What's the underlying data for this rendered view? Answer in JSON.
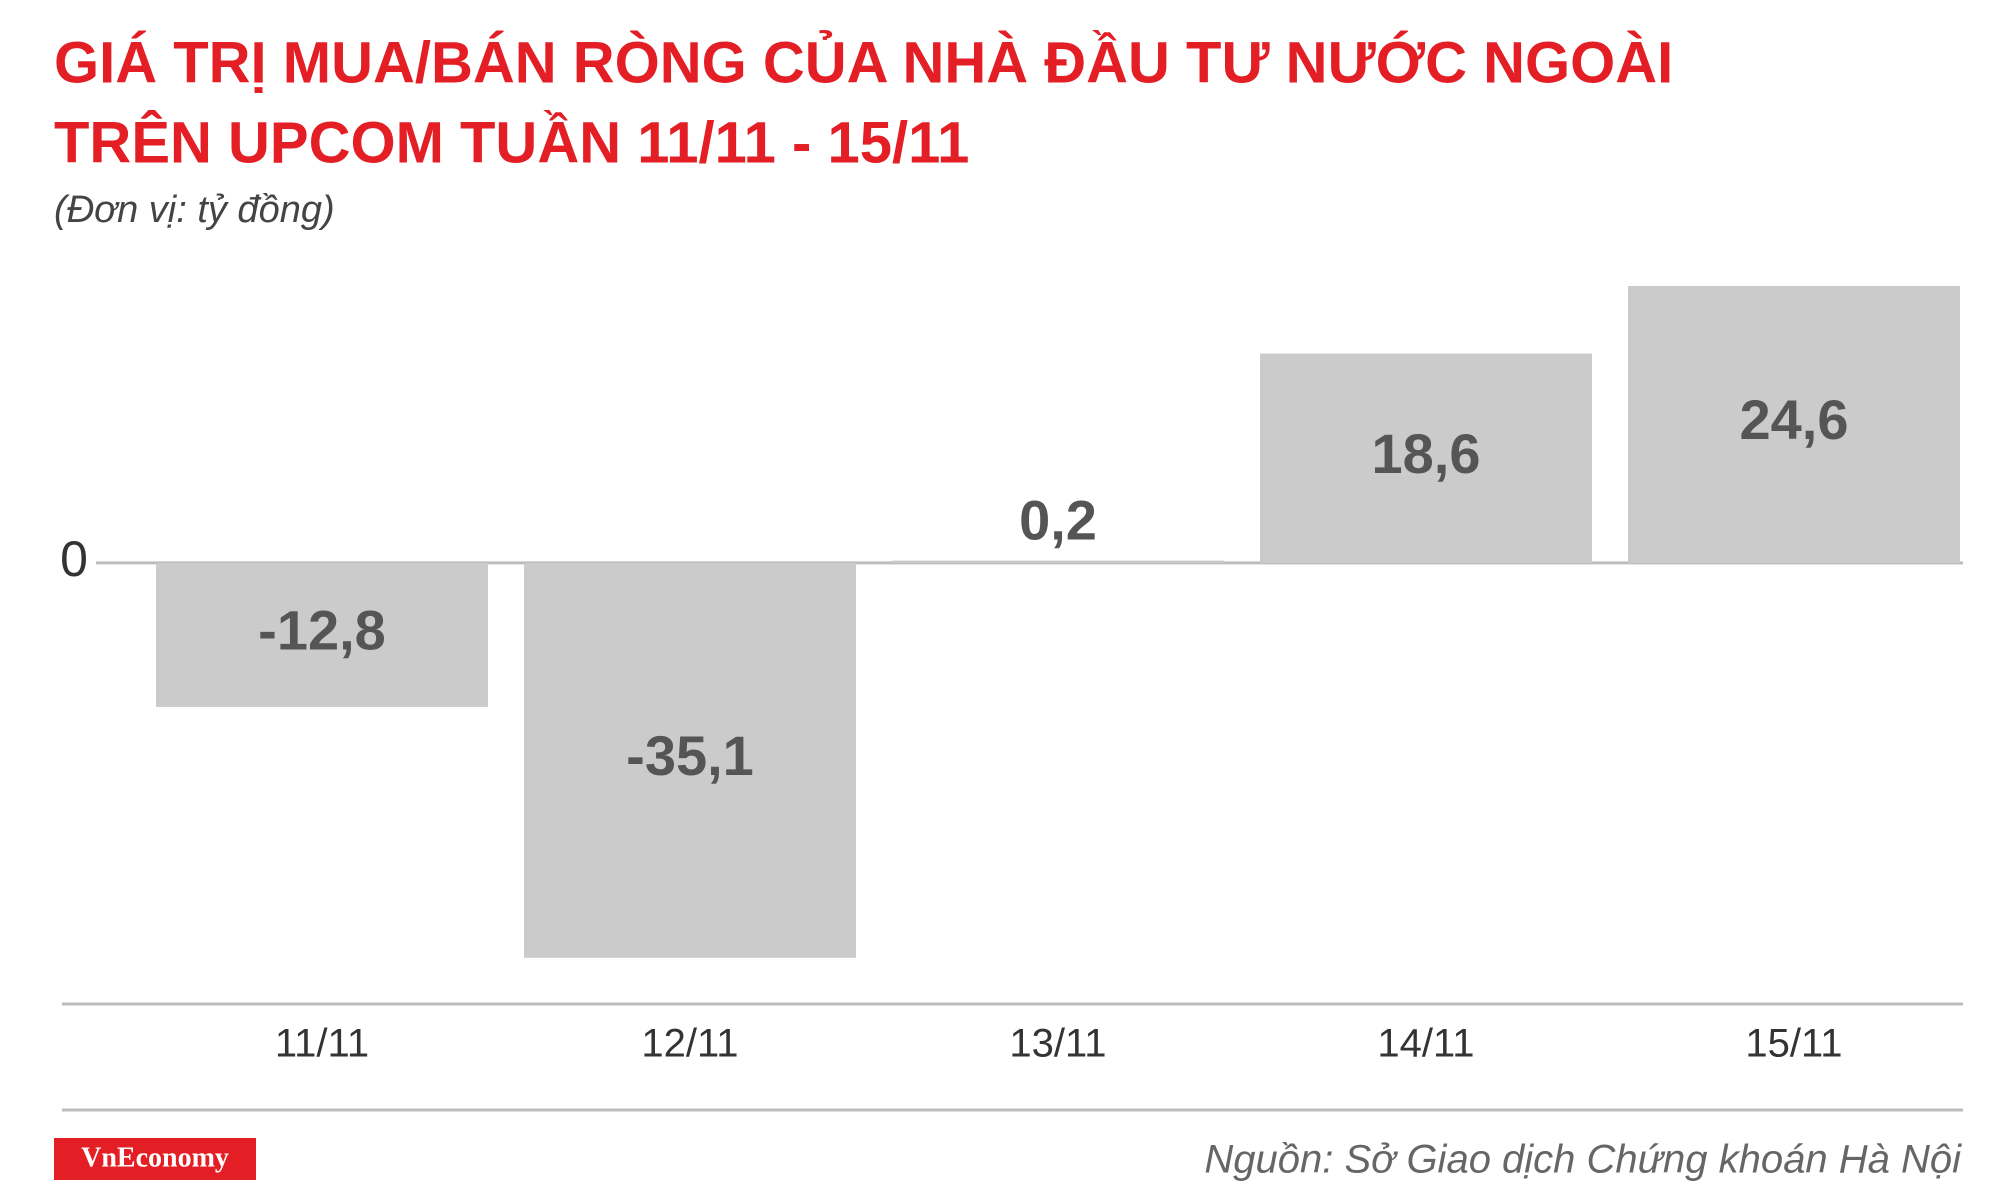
{
  "chart_data": {
    "type": "bar",
    "title": [
      "GIÁ TRỊ MUA/BÁN RÒNG CỦA NHÀ ĐẦU TƯ NƯỚC NGOÀI",
      "TRÊN UPCOM TUẦN 11/11 - 15/11"
    ],
    "subtitle": "(Đơn vị: tỷ đồng)",
    "categories": [
      "11/11",
      "12/11",
      "13/11",
      "14/11",
      "15/11"
    ],
    "values": [
      -12.8,
      -35.1,
      0.2,
      18.6,
      24.6
    ],
    "value_labels": [
      "-12,8",
      "-35,1",
      "0,2",
      "18,6",
      "24,6"
    ],
    "color": "#cccbcb",
    "ylim": [
      -39.2,
      27
    ],
    "yticks": [
      0
    ],
    "source": "Nguồn: Sở Giao dịch Chứng khoán Hà Nội",
    "logo": "VnEconomy"
  }
}
